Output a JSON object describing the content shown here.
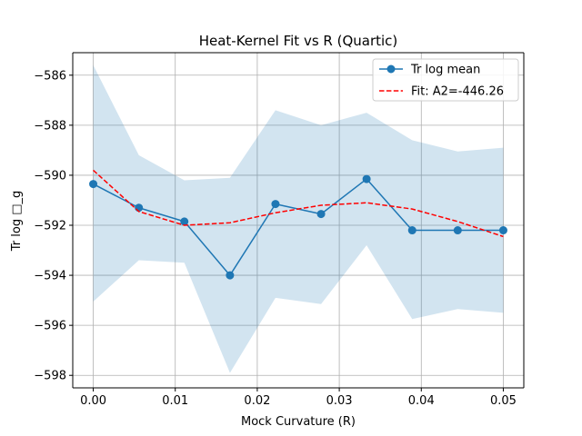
{
  "chart_data": {
    "type": "line",
    "title": "Heat-Kernel Fit vs R (Quartic)",
    "xlabel": "Mock Curvature (R)",
    "ylabel": "Tr log □_g",
    "xlim": [
      -0.0025,
      0.0525
    ],
    "ylim": [
      -598.5,
      -585.1
    ],
    "xticks": [
      0.0,
      0.01,
      0.02,
      0.03,
      0.04,
      0.05
    ],
    "xtick_labels": [
      "0.00",
      "0.01",
      "0.02",
      "0.03",
      "0.04",
      "0.05"
    ],
    "yticks": [
      -598,
      -596,
      -594,
      -592,
      -590,
      -588,
      -586
    ],
    "ytick_labels": [
      "−598",
      "−596",
      "−594",
      "−592",
      "−590",
      "−588",
      "−586"
    ],
    "grid": true,
    "legend_position": "top-right",
    "x": [
      0.0,
      0.00556,
      0.01111,
      0.01667,
      0.02222,
      0.02778,
      0.03333,
      0.03889,
      0.04444,
      0.05
    ],
    "series": [
      {
        "name": "Tr log mean",
        "style": "line-marker",
        "color": "#1f77b4",
        "values": [
          -590.35,
          -591.3,
          -591.85,
          -594.0,
          -591.15,
          -591.55,
          -590.15,
          -592.2,
          -592.2,
          -592.2
        ]
      },
      {
        "name": "Fit: A2=-446.26",
        "style": "dashed",
        "color": "#ff0000",
        "values": [
          -589.8,
          -591.45,
          -592.0,
          -591.9,
          -591.5,
          -591.2,
          -591.1,
          -591.35,
          -591.85,
          -592.45
        ]
      }
    ],
    "band": {
      "color": "#1f77b4",
      "opacity": 0.2,
      "upper": [
        -585.6,
        -589.2,
        -590.2,
        -590.1,
        -587.4,
        -588.0,
        -587.5,
        -588.6,
        -589.05,
        -588.9
      ],
      "lower": [
        -595.05,
        -593.4,
        -593.5,
        -597.9,
        -594.9,
        -595.15,
        -592.8,
        -595.75,
        -595.35,
        -595.5
      ]
    }
  }
}
